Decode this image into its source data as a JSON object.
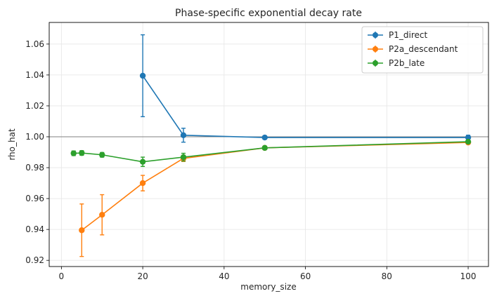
{
  "chart_data": {
    "type": "line",
    "title": "Phase-specific exponential decay rate",
    "xlabel": "memory_size",
    "ylabel": "rho_hat",
    "xlim": [
      -3,
      105
    ],
    "ylim": [
      0.916,
      1.074
    ],
    "xticks": [
      0,
      20,
      40,
      60,
      80,
      100
    ],
    "yticks": [
      0.92,
      0.94,
      0.96,
      0.98,
      1.0,
      1.02,
      1.04,
      1.06
    ],
    "ytick_labels": [
      "0.92",
      "0.94",
      "0.96",
      "0.98",
      "1.00",
      "1.02",
      "1.04",
      "1.06"
    ],
    "reference_line": 1.0,
    "grid": true,
    "legend_position": "top-right",
    "series": [
      {
        "name": "P1_direct",
        "color": "#1f77b4",
        "x": [
          20,
          30,
          50,
          100
        ],
        "y": [
          1.0395,
          1.001,
          0.9995,
          0.9995
        ],
        "err": [
          0.0265,
          0.0045,
          0.001,
          0.0015
        ]
      },
      {
        "name": "P2a_descendant",
        "color": "#ff7f0e",
        "x": [
          5,
          10,
          20,
          30,
          50,
          100
        ],
        "y": [
          0.9395,
          0.9495,
          0.97,
          0.986,
          0.9928,
          0.9963
        ],
        "err": [
          0.017,
          0.013,
          0.005,
          0.002,
          0.0008,
          0.0007
        ]
      },
      {
        "name": "P2b_late",
        "color": "#2ca02c",
        "x": [
          3,
          5,
          10,
          20,
          30,
          50,
          100
        ],
        "y": [
          0.9893,
          0.9895,
          0.9883,
          0.9838,
          0.9868,
          0.9928,
          0.9968
        ],
        "err": [
          0.0015,
          0.0015,
          0.0015,
          0.003,
          0.0025,
          0.0008,
          0.0007
        ]
      }
    ]
  }
}
